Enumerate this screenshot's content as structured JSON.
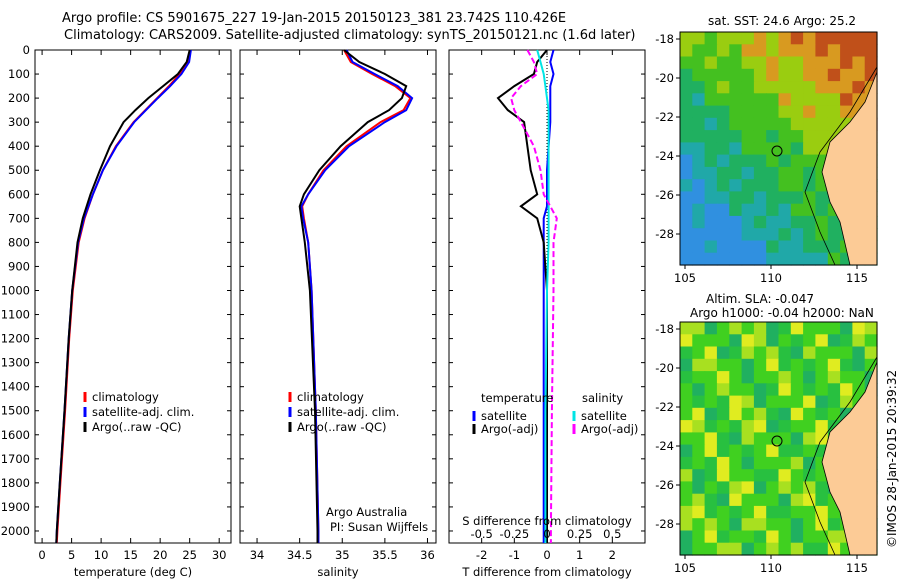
{
  "title_line1": "Argo profile: CS 5901675_227 19-Jan-2015 20150123_381 23.742S 110.426E",
  "title_line2": "Climatology: CARS2009. Satellite-adjusted climatology: synTS_20150121.nc (1.6d later)",
  "chart_data": [
    {
      "type": "line",
      "name": "temperature",
      "xlabel": "temperature (deg C)",
      "ylabel": "depth",
      "xlim": [
        -1.2,
        32
      ],
      "ylim": [
        2050,
        0
      ],
      "xticks": [
        0,
        5,
        10,
        15,
        20,
        25,
        30
      ],
      "yticks": [
        0,
        100,
        200,
        300,
        400,
        500,
        600,
        700,
        800,
        900,
        1000,
        1100,
        1200,
        1300,
        1400,
        1500,
        1600,
        1700,
        1800,
        1900,
        2000
      ],
      "legend": [
        "climatology",
        "satellite-adj. clim.",
        "Argo(..raw -QC)"
      ],
      "depth": [
        0,
        50,
        100,
        150,
        200,
        250,
        300,
        400,
        500,
        600,
        700,
        800,
        1000,
        1200,
        1500,
        1800,
        2000,
        2050
      ],
      "series": [
        {
          "name": "climatology",
          "color": "#ff0000",
          "values": [
            25,
            24.7,
            23.3,
            21.5,
            19.5,
            17.5,
            15.5,
            12.5,
            10.3,
            8.6,
            7.2,
            6.2,
            5.2,
            4.6,
            3.9,
            3.1,
            2.6,
            2.5
          ]
        },
        {
          "name": "satellite-adj. clim.",
          "color": "#0000ff",
          "values": [
            25.2,
            24.9,
            23.6,
            21.7,
            19.6,
            17.6,
            15.6,
            12.6,
            10.3,
            8.6,
            7.1,
            6.1,
            5.1,
            4.5,
            3.8,
            3.0,
            2.5,
            2.4
          ]
        },
        {
          "name": "Argo(..raw -QC)",
          "color": "#000000",
          "values": [
            25,
            24.5,
            23,
            20.5,
            18,
            15.8,
            13.8,
            11.5,
            9.8,
            8.2,
            6.9,
            6.0,
            5.1,
            4.5,
            3.8,
            3.0,
            2.5,
            2.4
          ]
        }
      ]
    },
    {
      "type": "line",
      "name": "salinity",
      "xlabel": "salinity",
      "xlim": [
        33.8,
        36.1
      ],
      "xticks": [
        34,
        34.5,
        35,
        35.5,
        36
      ],
      "legend": [
        "climatology",
        "satellite-adj. clim.",
        "Argo(..raw -QC)"
      ],
      "annotation": [
        "Argo Australia",
        "PI: Susan Wijffels"
      ],
      "depth": [
        0,
        50,
        100,
        150,
        200,
        250,
        300,
        400,
        500,
        600,
        650,
        700,
        800,
        1000,
        1500,
        2000,
        2050
      ],
      "series": [
        {
          "name": "climatology",
          "color": "#ff0000",
          "values": [
            35.02,
            35.1,
            35.35,
            35.62,
            35.8,
            35.72,
            35.45,
            35.05,
            34.78,
            34.6,
            34.53,
            34.55,
            34.6,
            34.64,
            34.69,
            34.72,
            34.72
          ]
        },
        {
          "name": "satellite-adj. clim.",
          "color": "#0000ff",
          "values": [
            35.05,
            35.12,
            35.38,
            35.65,
            35.82,
            35.75,
            35.5,
            35.08,
            34.8,
            34.6,
            34.52,
            34.54,
            34.6,
            34.64,
            34.69,
            34.72,
            34.72
          ]
        },
        {
          "name": "Argo(..raw -QC)",
          "color": "#000000",
          "values": [
            35.02,
            35.2,
            35.5,
            35.75,
            35.7,
            35.55,
            35.3,
            34.98,
            34.73,
            34.55,
            34.5,
            34.52,
            34.56,
            34.62,
            34.68,
            34.71,
            34.71
          ]
        }
      ]
    },
    {
      "type": "line",
      "name": "difference",
      "xlabel": "T difference from climatology",
      "x2label": "S difference from climatology",
      "xlim": [
        -3,
        3
      ],
      "xticks": [
        -2,
        -1,
        0,
        1,
        2
      ],
      "x2ticks": [
        "-0.5",
        "-0.25",
        "0",
        "0.25",
        "0.5"
      ],
      "legend_titles": [
        "temperature",
        "salinity"
      ],
      "legend": [
        "satellite",
        "Argo(-adj)",
        "satellite",
        "Argo(-adj)"
      ],
      "depth": [
        0,
        50,
        100,
        150,
        200,
        250,
        300,
        400,
        500,
        600,
        650,
        700,
        800,
        1000,
        1500,
        2000,
        2050
      ],
      "series": [
        {
          "name": "T satellite",
          "color": "#0000ff",
          "values": [
            0.2,
            0.1,
            0.2,
            0.1,
            0.1,
            0.1,
            0.1,
            0.05,
            0,
            0,
            0,
            -0.1,
            -0.1,
            -0.1,
            -0.1,
            -0.1,
            -0.1
          ]
        },
        {
          "name": "T Argo(-adj)",
          "color": "#000000",
          "values": [
            0,
            -0.3,
            -0.4,
            -1.0,
            -1.5,
            -1.2,
            -0.7,
            -0.6,
            -0.5,
            -0.3,
            -0.8,
            -0.3,
            -0.1,
            0,
            0,
            0,
            0
          ]
        },
        {
          "name": "S satellite",
          "color": "#00e5e5",
          "values": [
            -0.3,
            -0.2,
            -0.1,
            -0.05,
            0.0,
            0.05,
            0.05,
            0.05,
            0.05,
            0.05,
            0.05,
            0.05,
            0.05,
            0,
            -0.05,
            -0.05,
            -0.05
          ]
        },
        {
          "name": "S Argo(-adj)",
          "color": "#ff00ff",
          "values": [
            -0.6,
            -0.4,
            -0.3,
            -0.8,
            -1.1,
            -1.0,
            -0.8,
            -0.4,
            -0.2,
            -0.1,
            0.1,
            0.3,
            0.2,
            0.2,
            0.15,
            0.12,
            0.12
          ]
        }
      ]
    }
  ],
  "map_sst": {
    "title": "sat. SST: 24.6 Argo: 25.2",
    "lat_ticks": [
      "-18",
      "-20",
      "-22",
      "-24",
      "-26",
      "-28"
    ],
    "lon_ticks": [
      "105",
      "110",
      "115"
    ]
  },
  "map_sla": {
    "title1": "Altim. SLA: -0.047",
    "title2": "Argo h1000: -0.04 h2000: NaN",
    "lat_ticks": [
      "-18",
      "-20",
      "-22",
      "-24",
      "-26",
      "-28"
    ],
    "lon_ticks": [
      "105",
      "110",
      "115"
    ]
  },
  "credit": "©IMOS 28-Jan-2015 20:39:32"
}
